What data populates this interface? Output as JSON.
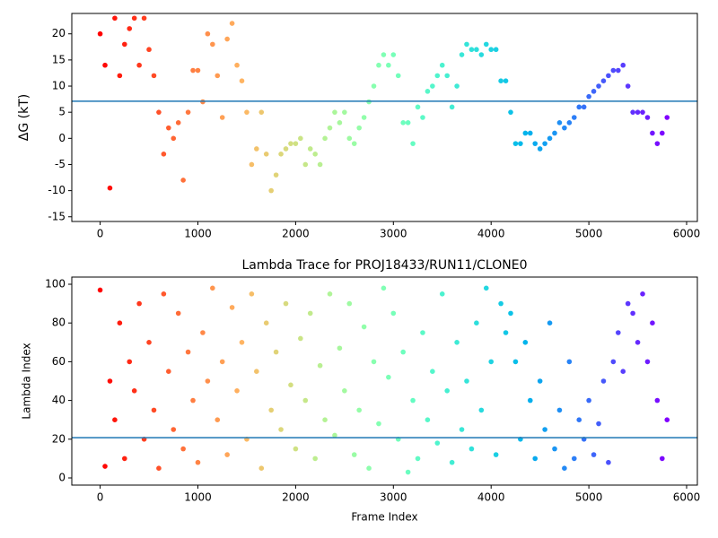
{
  "chart_data": [
    {
      "type": "scatter",
      "ylabel": "ΔG (kT)",
      "colormap": "rainbow_r",
      "hline": 7.1,
      "hline_color": "#1f77b4",
      "xlim": [
        -290,
        6110
      ],
      "ylim": [
        -15.9,
        23.9
      ],
      "xticks": [
        0,
        1000,
        2000,
        3000,
        4000,
        5000,
        6000
      ],
      "yticks": [
        -15,
        -10,
        -5,
        0,
        5,
        10,
        15,
        20
      ],
      "x": [
        0,
        50,
        100,
        150,
        200,
        250,
        300,
        350,
        400,
        450,
        500,
        550,
        600,
        650,
        700,
        750,
        800,
        850,
        900,
        950,
        1000,
        1050,
        1100,
        1150,
        1200,
        1250,
        1300,
        1350,
        1400,
        1450,
        1500,
        1550,
        1600,
        1650,
        1700,
        1750,
        1800,
        1850,
        1900,
        1950,
        2000,
        2050,
        2100,
        2150,
        2200,
        2250,
        2300,
        2350,
        2400,
        2450,
        2500,
        2550,
        2600,
        2650,
        2700,
        2750,
        2800,
        2850,
        2900,
        2950,
        3000,
        3050,
        3100,
        3150,
        3200,
        3250,
        3300,
        3350,
        3400,
        3450,
        3500,
        3550,
        3600,
        3650,
        3700,
        3750,
        3800,
        3850,
        3900,
        3950,
        4000,
        4050,
        4100,
        4150,
        4200,
        4250,
        4300,
        4350,
        4400,
        4450,
        4500,
        4550,
        4600,
        4650,
        4700,
        4750,
        4800,
        4850,
        4900,
        4950,
        5000,
        5050,
        5100,
        5150,
        5200,
        5250,
        5300,
        5350,
        5400,
        5450,
        5500,
        5550,
        5600,
        5650,
        5700,
        5750,
        5800
      ],
      "values": [
        20,
        14,
        -9.5,
        23,
        12,
        18,
        21,
        23,
        14,
        23,
        17,
        12,
        5,
        -3,
        2,
        0,
        3,
        -8,
        5,
        13,
        13,
        7,
        20,
        18,
        12,
        4,
        19,
        22,
        14,
        11,
        5,
        -5,
        -2,
        5,
        -3,
        -10,
        -7,
        -3,
        -2,
        -1,
        -1,
        0,
        -5,
        -2,
        -3,
        -5,
        0,
        2,
        5,
        3,
        5,
        0,
        -1,
        2,
        4,
        7,
        10,
        14,
        16,
        14,
        16,
        12,
        3,
        3,
        -1,
        6,
        4,
        9,
        10,
        12,
        14,
        12,
        6,
        10,
        16,
        18,
        17,
        17,
        16,
        18,
        17,
        17,
        11,
        11,
        5,
        -1,
        -1,
        1,
        1,
        -1,
        -2,
        -1,
        0,
        1,
        3,
        2,
        3,
        4,
        6,
        6,
        8,
        9,
        10,
        11,
        12,
        13,
        13,
        14,
        10,
        5,
        5,
        5,
        4,
        1,
        -1,
        1,
        4
      ]
    },
    {
      "type": "scatter",
      "title": "Lambda Trace for PROJ18433/RUN11/CLONE0",
      "xlabel": "Frame Index",
      "ylabel": "Lambda Index",
      "colormap": "rainbow_r",
      "hline": 20.8,
      "hline_color": "#1f77b4",
      "xlim": [
        -290,
        6110
      ],
      "ylim": [
        -3.7,
        103.7
      ],
      "xticks": [
        0,
        1000,
        2000,
        3000,
        4000,
        5000,
        6000
      ],
      "yticks": [
        0,
        20,
        40,
        60,
        80,
        100
      ],
      "x": [
        0,
        50,
        100,
        150,
        200,
        250,
        300,
        350,
        400,
        450,
        500,
        550,
        600,
        650,
        700,
        750,
        800,
        850,
        900,
        950,
        1000,
        1050,
        1100,
        1150,
        1200,
        1250,
        1300,
        1350,
        1400,
        1450,
        1500,
        1550,
        1600,
        1650,
        1700,
        1750,
        1800,
        1850,
        1900,
        1950,
        2000,
        2050,
        2100,
        2150,
        2200,
        2250,
        2300,
        2350,
        2400,
        2450,
        2500,
        2550,
        2600,
        2650,
        2700,
        2750,
        2800,
        2850,
        2900,
        2950,
        3000,
        3050,
        3100,
        3150,
        3200,
        3250,
        3300,
        3350,
        3400,
        3450,
        3500,
        3550,
        3600,
        3650,
        3700,
        3750,
        3800,
        3850,
        3900,
        3950,
        4000,
        4050,
        4100,
        4150,
        4200,
        4250,
        4300,
        4350,
        4400,
        4450,
        4500,
        4550,
        4600,
        4650,
        4700,
        4750,
        4800,
        4850,
        4900,
        4950,
        5000,
        5050,
        5100,
        5150,
        5200,
        5250,
        5300,
        5350,
        5400,
        5450,
        5500,
        5550,
        5600,
        5650,
        5700,
        5750,
        5800
      ],
      "values": [
        97,
        6,
        50,
        30,
        80,
        10,
        60,
        45,
        90,
        20,
        70,
        35,
        5,
        95,
        55,
        25,
        85,
        15,
        65,
        40,
        8,
        75,
        50,
        98,
        30,
        60,
        12,
        88,
        45,
        70,
        20,
        95,
        55,
        5,
        80,
        35,
        65,
        25,
        90,
        48,
        15,
        72,
        40,
        85,
        10,
        58,
        30,
        95,
        22,
        67,
        45,
        90,
        12,
        35,
        78,
        5,
        60,
        28,
        98,
        52,
        85,
        20,
        65,
        3,
        40,
        10,
        75,
        30,
        55,
        18,
        95,
        45,
        8,
        70,
        25,
        50,
        15,
        80,
        35,
        98,
        60,
        12,
        90,
        75,
        85,
        60,
        20,
        70,
        40,
        10,
        50,
        25,
        80,
        15,
        35,
        5,
        60,
        10,
        30,
        20,
        40,
        12,
        28,
        50,
        8,
        60,
        75,
        55,
        90,
        85,
        70,
        95,
        60,
        80,
        40,
        10,
        30
      ]
    }
  ]
}
